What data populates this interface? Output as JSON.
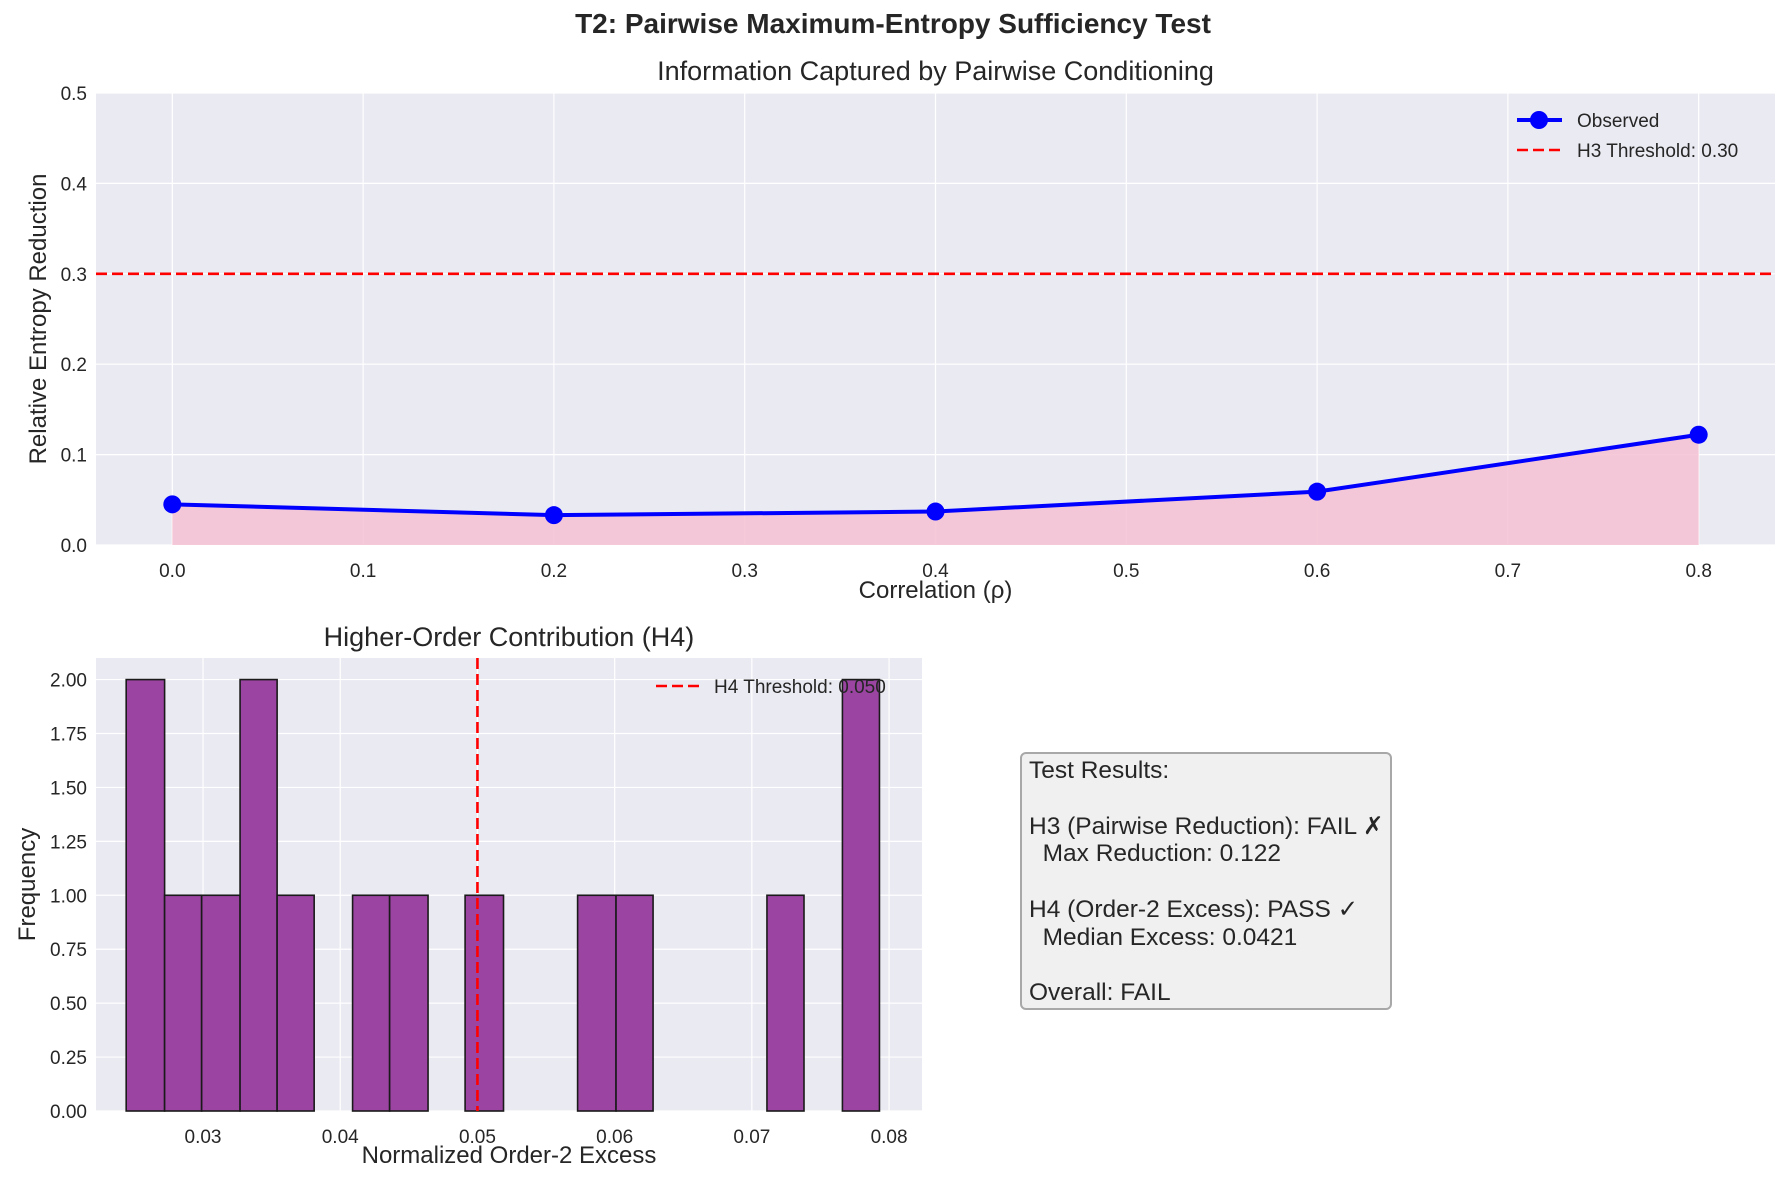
{
  "suptitle": "T2: Pairwise Maximum-Entropy Sufficiency Test",
  "colors": {
    "axes_bg": "#eaeaf2",
    "grid": "#ffffff",
    "observed_line": "#0000ff",
    "fill": "#f4c1d2",
    "threshold": "#ff0000",
    "hist_bar": "#9b44a2",
    "hist_edge": "#1a1a1a"
  },
  "chart_data": [
    {
      "type": "line",
      "title": "Information Captured by Pairwise Conditioning",
      "xlabel": "Correlation (ρ)",
      "ylabel": "Relative Entropy Reduction",
      "xlim": [
        -0.04,
        0.84
      ],
      "ylim": [
        0,
        0.5
      ],
      "xticks": [
        "0.0",
        "0.1",
        "0.2",
        "0.3",
        "0.4",
        "0.5",
        "0.6",
        "0.7",
        "0.8"
      ],
      "yticks": [
        "0.0",
        "0.1",
        "0.2",
        "0.3",
        "0.4",
        "0.5"
      ],
      "grid": true,
      "legend_position": "top-right",
      "series": [
        {
          "name": "Observed",
          "x": [
            0.0,
            0.2,
            0.4,
            0.6,
            0.8
          ],
          "y": [
            0.045,
            0.033,
            0.037,
            0.059,
            0.122
          ],
          "marker": "circle",
          "fill_under": true
        }
      ],
      "reference_lines": [
        {
          "name": "H3 Threshold: 0.30",
          "orientation": "horizontal",
          "value": 0.3,
          "style": "dashed"
        }
      ]
    },
    {
      "type": "bar",
      "title": "Higher-Order Contribution (H4)",
      "xlabel": "Normalized Order-2 Excess",
      "ylabel": "Frequency",
      "xlim": [
        0.0222,
        0.0824
      ],
      "ylim": [
        0,
        2.1
      ],
      "xticks": [
        "0.03",
        "0.04",
        "0.05",
        "0.06",
        "0.07",
        "0.08"
      ],
      "yticks": [
        "0.00",
        "0.25",
        "0.50",
        "0.75",
        "1.00",
        "1.25",
        "1.50",
        "1.75",
        "2.00"
      ],
      "grid": true,
      "legend_position": "top-right",
      "bins": [
        {
          "x0": 0.0244,
          "x1": 0.0272,
          "count": 2
        },
        {
          "x0": 0.0272,
          "x1": 0.0299,
          "count": 1
        },
        {
          "x0": 0.0299,
          "x1": 0.0327,
          "count": 1
        },
        {
          "x0": 0.0327,
          "x1": 0.0354,
          "count": 2
        },
        {
          "x0": 0.0354,
          "x1": 0.0381,
          "count": 1
        },
        {
          "x0": 0.0409,
          "x1": 0.0436,
          "count": 1
        },
        {
          "x0": 0.0436,
          "x1": 0.0464,
          "count": 1
        },
        {
          "x0": 0.0491,
          "x1": 0.0519,
          "count": 1
        },
        {
          "x0": 0.0573,
          "x1": 0.0601,
          "count": 1
        },
        {
          "x0": 0.0601,
          "x1": 0.0628,
          "count": 1
        },
        {
          "x0": 0.0711,
          "x1": 0.0738,
          "count": 1
        },
        {
          "x0": 0.0766,
          "x1": 0.0793,
          "count": 2
        }
      ],
      "reference_lines": [
        {
          "name": "H4 Threshold: 0.050",
          "orientation": "vertical",
          "value": 0.05,
          "style": "dashed"
        }
      ]
    }
  ],
  "results": {
    "text": "Test Results:\n\nH3 (Pairwise Reduction): FAIL ✗\n  Max Reduction: 0.122\n\nH4 (Order-2 Excess): PASS ✓\n  Median Excess: 0.0421\n\nOverall: FAIL"
  }
}
